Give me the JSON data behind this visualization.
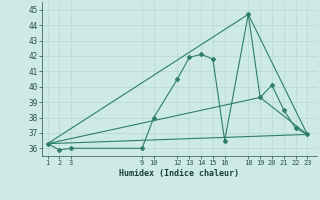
{
  "xlabel": "Humidex (Indice chaleur)",
  "background_color": "#ceeae4",
  "grid_color": "#b8d8d2",
  "line_color": "#2e7d6e",
  "x_ticks": [
    1,
    2,
    3,
    9,
    10,
    12,
    13,
    14,
    15,
    16,
    18,
    19,
    20,
    21,
    22,
    23
  ],
  "ylim": [
    35.5,
    45.5
  ],
  "yticks": [
    36,
    37,
    38,
    39,
    40,
    41,
    42,
    43,
    44,
    45
  ],
  "xlim": [
    0.5,
    23.8
  ],
  "series": [
    {
      "x": [
        1,
        2,
        3,
        9,
        10,
        12,
        13,
        14,
        15,
        16,
        18,
        19,
        20,
        21,
        22,
        23
      ],
      "y": [
        36.3,
        35.9,
        36.0,
        36.0,
        38.0,
        40.5,
        41.9,
        42.1,
        41.8,
        36.5,
        44.7,
        39.3,
        40.1,
        38.5,
        37.3,
        36.9
      ]
    },
    {
      "x": [
        1,
        23
      ],
      "y": [
        36.3,
        36.9
      ]
    },
    {
      "x": [
        1,
        19,
        23
      ],
      "y": [
        36.3,
        39.3,
        36.9
      ]
    },
    {
      "x": [
        1,
        18,
        23
      ],
      "y": [
        36.3,
        44.7,
        36.9
      ]
    }
  ]
}
